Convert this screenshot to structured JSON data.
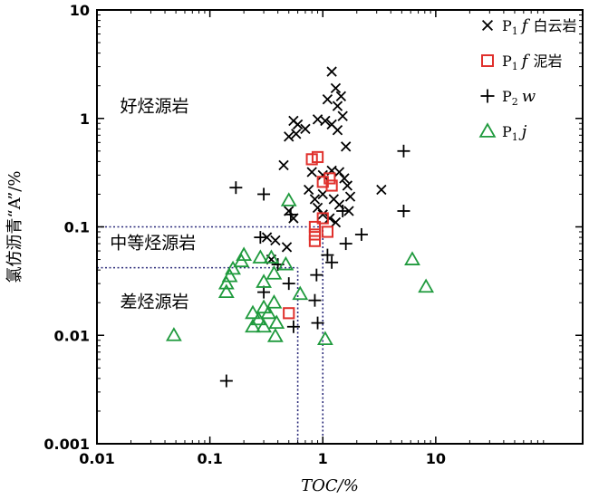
{
  "chart_data": {
    "type": "scatter",
    "xlabel": "TOC/%",
    "ylabel": "氯仿沥青“A”/%",
    "x_scale": "log",
    "y_scale": "log",
    "xlim": [
      0.01,
      200
    ],
    "ylim": [
      0.001,
      10
    ],
    "x_ticks": [
      "0.01",
      "0.1",
      "1",
      "10"
    ],
    "y_ticks": [
      "0.001",
      "0.01",
      "0.1",
      "1",
      "10"
    ],
    "grid": false,
    "legend_position": "top-right",
    "region_labels": [
      {
        "text": "好烃源岩",
        "x": 0.016,
        "y": 1.15
      },
      {
        "text": "中等烃源岩",
        "x": 0.013,
        "y": 0.063
      },
      {
        "text": "差烃源岩",
        "x": 0.016,
        "y": 0.018
      }
    ],
    "threshold_lines": [
      {
        "type": "h",
        "y": 0.1,
        "x_from": 0.01,
        "x_to": 1
      },
      {
        "type": "h",
        "y": 0.042,
        "x_from": 0.01,
        "x_to": 0.6
      },
      {
        "type": "v",
        "x": 0.6,
        "y_from": 0.001,
        "y_to": 0.042
      },
      {
        "type": "v",
        "x": 1,
        "y_from": 0.001,
        "y_to": 0.1
      }
    ],
    "series": [
      {
        "name": "P₁f 白云岩",
        "label_main": "P",
        "label_sub": "1",
        "label_italic": "f",
        "label_cn": "白云岩",
        "marker": "x",
        "color": "#000000",
        "points": [
          [
            1.2,
            2.7
          ],
          [
            1.3,
            1.9
          ],
          [
            1.1,
            1.5
          ],
          [
            1.45,
            1.6
          ],
          [
            1.35,
            1.3
          ],
          [
            1.5,
            1.05
          ],
          [
            0.9,
            0.98
          ],
          [
            1.05,
            0.95
          ],
          [
            1.2,
            0.88
          ],
          [
            1.35,
            0.78
          ],
          [
            0.55,
            0.95
          ],
          [
            0.6,
            0.88
          ],
          [
            0.7,
            0.8
          ],
          [
            0.5,
            0.68
          ],
          [
            0.58,
            0.72
          ],
          [
            1.6,
            0.55
          ],
          [
            1.4,
            0.32
          ],
          [
            1.55,
            0.28
          ],
          [
            1.2,
            0.33
          ],
          [
            1.65,
            0.24
          ],
          [
            1.75,
            0.19
          ],
          [
            0.45,
            0.37
          ],
          [
            0.8,
            0.32
          ],
          [
            1.0,
            0.3
          ],
          [
            0.75,
            0.22
          ],
          [
            0.85,
            0.18
          ],
          [
            1.0,
            0.2
          ],
          [
            1.25,
            0.18
          ],
          [
            1.4,
            0.16
          ],
          [
            1.7,
            0.14
          ],
          [
            3.3,
            0.22
          ],
          [
            0.5,
            0.14
          ],
          [
            0.55,
            0.12
          ],
          [
            0.9,
            0.15
          ],
          [
            1.0,
            0.13
          ],
          [
            1.15,
            0.12
          ],
          [
            1.3,
            0.11
          ],
          [
            0.32,
            0.08
          ],
          [
            0.38,
            0.075
          ],
          [
            0.48,
            0.065
          ],
          [
            0.35,
            0.05
          ]
        ]
      },
      {
        "name": "P₁f 泥岩",
        "label_main": "P",
        "label_sub": "1",
        "label_italic": "f",
        "label_cn": "泥岩",
        "marker": "square",
        "color": "#e0302c",
        "points": [
          [
            0.8,
            0.42
          ],
          [
            0.9,
            0.44
          ],
          [
            1.0,
            0.26
          ],
          [
            1.15,
            0.28
          ],
          [
            1.2,
            0.24
          ],
          [
            1.0,
            0.12
          ],
          [
            0.85,
            0.1
          ],
          [
            0.85,
            0.085
          ],
          [
            0.85,
            0.074
          ],
          [
            1.1,
            0.09
          ],
          [
            0.5,
            0.016
          ]
        ]
      },
      {
        "name": "P₂ w",
        "label_main": "P",
        "label_sub": "2",
        "label_italic": "w",
        "label_cn": "",
        "marker": "plus",
        "color": "#000000",
        "points": [
          [
            5.2,
            0.5
          ],
          [
            5.2,
            0.14
          ],
          [
            0.17,
            0.23
          ],
          [
            0.3,
            0.2
          ],
          [
            0.52,
            0.13
          ],
          [
            1.5,
            0.14
          ],
          [
            2.2,
            0.085
          ],
          [
            1.6,
            0.07
          ],
          [
            1.1,
            0.055
          ],
          [
            1.2,
            0.047
          ],
          [
            0.28,
            0.08
          ],
          [
            0.3,
            0.025
          ],
          [
            0.5,
            0.03
          ],
          [
            0.4,
            0.045
          ],
          [
            0.88,
            0.036
          ],
          [
            0.85,
            0.021
          ],
          [
            0.9,
            0.013
          ],
          [
            0.55,
            0.012
          ],
          [
            0.14,
            0.0038
          ]
        ]
      },
      {
        "name": "P₁ j",
        "label_main": "P",
        "label_sub": "1",
        "label_italic": "j",
        "label_cn": "",
        "marker": "triangle",
        "color": "#1f9a3d",
        "points": [
          [
            0.5,
            0.175
          ],
          [
            0.048,
            0.01
          ],
          [
            0.15,
            0.035
          ],
          [
            0.16,
            0.041
          ],
          [
            0.19,
            0.048
          ],
          [
            0.2,
            0.055
          ],
          [
            0.14,
            0.025
          ],
          [
            0.14,
            0.03
          ],
          [
            0.24,
            0.016
          ],
          [
            0.27,
            0.014
          ],
          [
            0.24,
            0.012
          ],
          [
            0.3,
            0.012
          ],
          [
            0.3,
            0.018
          ],
          [
            0.3,
            0.031
          ],
          [
            0.28,
            0.052
          ],
          [
            0.37,
            0.037
          ],
          [
            0.35,
            0.052
          ],
          [
            0.47,
            0.045
          ],
          [
            0.37,
            0.02
          ],
          [
            0.33,
            0.016
          ],
          [
            0.39,
            0.013
          ],
          [
            0.38,
            0.0098
          ],
          [
            0.63,
            0.024
          ],
          [
            1.05,
            0.0092
          ],
          [
            6.2,
            0.05
          ],
          [
            8.2,
            0.028
          ]
        ]
      }
    ]
  }
}
